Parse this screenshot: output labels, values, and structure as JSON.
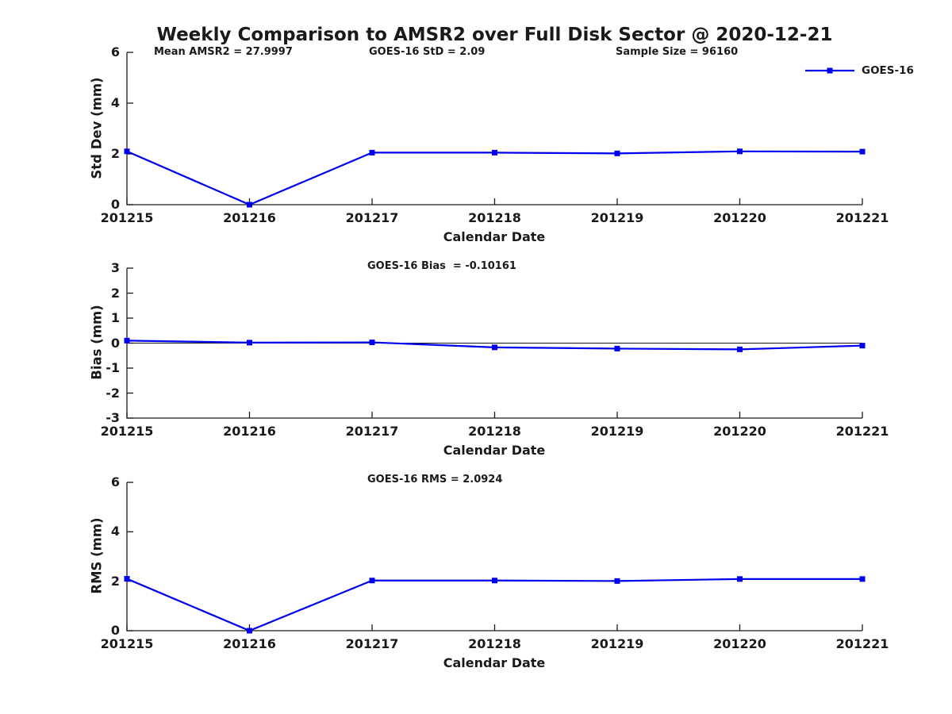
{
  "figure": {
    "title": "Weekly Comparison to AMSR2 over Full Disk Sector @ 2020-12-21"
  },
  "legend": {
    "series_label": "GOES-16",
    "color": "#0000EE",
    "position": "top-right-above-first-plot"
  },
  "colors": {
    "line": "#0000EE",
    "axis": "#1a1a1a",
    "text": "#1a1a1a",
    "background": "#ffffff"
  },
  "chart_data": [
    {
      "type": "line",
      "id": "std-dev",
      "ylabel": "Std Dev (mm)",
      "xlabel": "Calendar Date",
      "ylim": [
        0,
        6
      ],
      "yticks": [
        0,
        2,
        4,
        6
      ],
      "grid": false,
      "zero_line": false,
      "categories": [
        "201215",
        "201216",
        "201217",
        "201218",
        "201219",
        "201220",
        "201221"
      ],
      "series": [
        {
          "name": "GOES-16",
          "marker": "square",
          "values": [
            2.1,
            0.0,
            2.05,
            2.05,
            2.02,
            2.1,
            2.09
          ]
        }
      ],
      "annotations": [
        {
          "text": "Mean AMSR2 = 27.9997"
        },
        {
          "text": "GOES-16 StD = 2.09"
        },
        {
          "text": "Sample Size = 96160"
        }
      ]
    },
    {
      "type": "line",
      "id": "bias",
      "ylabel": "Bias (mm)",
      "xlabel": "Calendar Date",
      "ylim": [
        -3,
        3
      ],
      "yticks": [
        -3,
        -2,
        -1,
        0,
        1,
        2,
        3
      ],
      "grid": false,
      "zero_line": true,
      "categories": [
        "201215",
        "201216",
        "201217",
        "201218",
        "201219",
        "201220",
        "201221"
      ],
      "series": [
        {
          "name": "GOES-16",
          "marker": "square",
          "values": [
            0.1,
            0.02,
            0.03,
            -0.17,
            -0.22,
            -0.25,
            -0.1
          ]
        }
      ],
      "annotations": [
        {
          "text": "GOES-16 Bias  = -0.10161"
        }
      ]
    },
    {
      "type": "line",
      "id": "rms",
      "ylabel": "RMS (mm)",
      "xlabel": "Calendar Date",
      "ylim": [
        0,
        6
      ],
      "yticks": [
        0,
        2,
        4,
        6
      ],
      "grid": false,
      "zero_line": false,
      "categories": [
        "201215",
        "201216",
        "201217",
        "201218",
        "201219",
        "201220",
        "201221"
      ],
      "series": [
        {
          "name": "GOES-16",
          "marker": "square",
          "values": [
            2.1,
            0.0,
            2.03,
            2.03,
            2.01,
            2.09,
            2.09
          ]
        }
      ],
      "annotations": [
        {
          "text": "GOES-16 RMS = 2.0924"
        }
      ]
    }
  ]
}
